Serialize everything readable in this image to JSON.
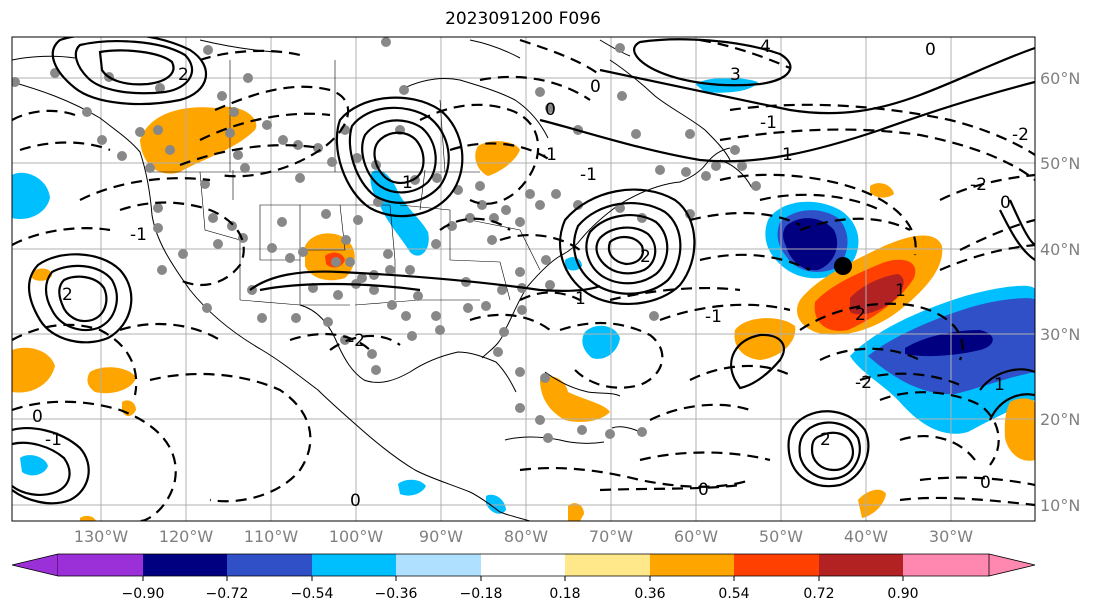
{
  "title": "2023091200 F096",
  "lon_labels": [
    "130°W",
    "120°W",
    "110°W",
    "100°W",
    "90°W",
    "80°W",
    "70°W",
    "60°W",
    "50°W",
    "40°W",
    "30°W"
  ],
  "lat_labels": [
    "60°N",
    "50°N",
    "40°N",
    "30°N",
    "20°N",
    "10°N"
  ],
  "colorbar": {
    "ticks": [
      "−0.90",
      "−0.72",
      "−0.54",
      "−0.36",
      "−0.18",
      "0.18",
      "0.36",
      "0.54",
      "0.72",
      "0.90"
    ],
    "colors": [
      "#9b30d9",
      "#000080",
      "#3050c8",
      "#00bfff",
      "#b0e0ff",
      "#ffffff",
      "#ffe88a",
      "#ffa500",
      "#ff4000",
      "#b22222",
      "#ff88b0"
    ]
  },
  "contour_labels": [
    "-2",
    "-1",
    "0",
    "1",
    "2",
    "3",
    "4",
    "-2",
    "-1",
    "0",
    "1",
    "2",
    "0",
    "-1",
    "1",
    "2",
    "0",
    "-1",
    "0",
    "-2",
    "0",
    "0",
    "1",
    "2",
    "0",
    "-1",
    "2",
    "-1",
    "-2",
    "1"
  ],
  "colors": {
    "orange": "#ffa500",
    "light_blue": "#00bfff",
    "blue": "#3050c8",
    "navy": "#000080",
    "red": "#ff4000",
    "dark_red": "#b22222",
    "point": "#888888"
  }
}
